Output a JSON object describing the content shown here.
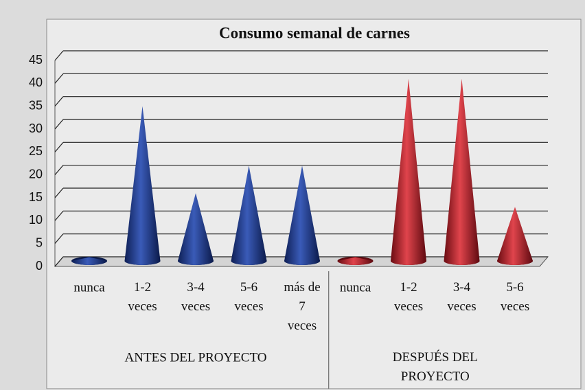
{
  "chart_data": {
    "type": "cone",
    "title": "Consumo semanal de carnes",
    "ylim": [
      0,
      45
    ],
    "yticks": [
      0,
      5,
      10,
      15,
      20,
      25,
      30,
      35,
      40,
      45
    ],
    "grid": true,
    "groups": [
      {
        "label": "ANTES DEL PROYECTO",
        "color": "#1f3a86",
        "categories": [
          "nunca",
          "1-2\nveces",
          "3-4\nveces",
          "5-6\nveces",
          "más de\n7\nveces"
        ],
        "values": [
          2,
          35,
          16,
          22,
          22
        ]
      },
      {
        "label": "DESPUÉS DEL\nPROYECTO",
        "color": "#b01e28",
        "categories": [
          "nunca",
          "1-2\nveces",
          "3-4\nveces",
          "5-6\nveces"
        ],
        "values": [
          2,
          41,
          41,
          13
        ]
      }
    ]
  }
}
